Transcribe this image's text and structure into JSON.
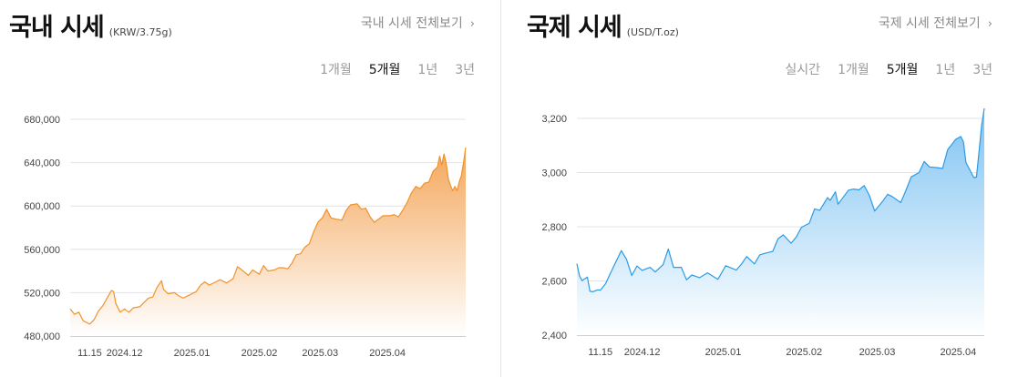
{
  "domestic": {
    "title": "국내 시세",
    "unit": "(KRW/3.75g)",
    "more_link": "국내 시세 전체보기",
    "periods": [
      "1개월",
      "5개월",
      "1년",
      "3년"
    ],
    "active_period": "5개월",
    "colors": {
      "line": "#f0932b",
      "fill_top": "#f4a65a",
      "fill_bottom": "#ffffff"
    }
  },
  "international": {
    "title": "국제 시세",
    "unit": "(USD/T.oz)",
    "more_link": "국제 시세 전체보기",
    "periods": [
      "실시간",
      "1개월",
      "5개월",
      "1년",
      "3년"
    ],
    "active_period": "5개월",
    "colors": {
      "line": "#2b9be6",
      "fill_top": "#7fc3f2",
      "fill_bottom": "#ffffff"
    }
  },
  "chart_data": [
    {
      "type": "area",
      "series_name": "",
      "ylim": [
        480000,
        680000
      ],
      "yticks": [
        480000,
        520000,
        560000,
        600000,
        640000,
        680000
      ],
      "ytick_labels": [
        "480,000",
        "520,000",
        "560,000",
        "600,000",
        "640,000",
        "680,000"
      ],
      "xticks": [
        "2024-11-15",
        "2024-12-01",
        "2025-01-01",
        "2025-02-01",
        "2025-03-01",
        "2025-04-01"
      ],
      "xtick_labels": [
        "11.15",
        "2024.12",
        "2025.01",
        "2025.02",
        "2025.03",
        "2025.04"
      ],
      "grid": true,
      "points": [
        [
          "2024-11-06",
          505000
        ],
        [
          "2024-11-08",
          500000
        ],
        [
          "2024-11-10",
          502000
        ],
        [
          "2024-11-12",
          494000
        ],
        [
          "2024-11-14",
          492000
        ],
        [
          "2024-11-15",
          491000
        ],
        [
          "2024-11-17",
          495000
        ],
        [
          "2024-11-19",
          503000
        ],
        [
          "2024-11-21",
          508000
        ],
        [
          "2024-11-23",
          515000
        ],
        [
          "2024-11-25",
          522000
        ],
        [
          "2024-11-26",
          521000
        ],
        [
          "2024-11-27",
          510000
        ],
        [
          "2024-11-29",
          502000
        ],
        [
          "2024-12-01",
          505000
        ],
        [
          "2024-12-03",
          502000
        ],
        [
          "2024-12-05",
          506000
        ],
        [
          "2024-12-08",
          507000
        ],
        [
          "2024-12-10",
          511000
        ],
        [
          "2024-12-12",
          515000
        ],
        [
          "2024-12-14",
          516000
        ],
        [
          "2024-12-16",
          525000
        ],
        [
          "2024-12-18",
          531000
        ],
        [
          "2024-12-19",
          523000
        ],
        [
          "2024-12-21",
          519000
        ],
        [
          "2024-12-24",
          520000
        ],
        [
          "2024-12-26",
          517000
        ],
        [
          "2024-12-28",
          515000
        ],
        [
          "2024-12-31",
          518000
        ],
        [
          "2025-01-03",
          521000
        ],
        [
          "2025-01-05",
          527000
        ],
        [
          "2025-01-07",
          530000
        ],
        [
          "2025-01-09",
          527000
        ],
        [
          "2025-01-12",
          530000
        ],
        [
          "2025-01-14",
          532000
        ],
        [
          "2025-01-17",
          529000
        ],
        [
          "2025-01-20",
          533000
        ],
        [
          "2025-01-22",
          544000
        ],
        [
          "2025-01-24",
          541000
        ],
        [
          "2025-01-27",
          536000
        ],
        [
          "2025-01-29",
          541000
        ],
        [
          "2025-02-01",
          537000
        ],
        [
          "2025-02-03",
          545000
        ],
        [
          "2025-02-05",
          540000
        ],
        [
          "2025-02-08",
          541000
        ],
        [
          "2025-02-10",
          543000
        ],
        [
          "2025-02-12",
          543000
        ],
        [
          "2025-02-14",
          542000
        ],
        [
          "2025-02-16",
          547000
        ],
        [
          "2025-02-18",
          555000
        ],
        [
          "2025-02-20",
          556000
        ],
        [
          "2025-02-22",
          562000
        ],
        [
          "2025-02-24",
          565000
        ],
        [
          "2025-02-26",
          576000
        ],
        [
          "2025-02-28",
          585000
        ],
        [
          "2025-03-02",
          589000
        ],
        [
          "2025-03-04",
          597000
        ],
        [
          "2025-03-06",
          589000
        ],
        [
          "2025-03-08",
          588000
        ],
        [
          "2025-03-11",
          587000
        ],
        [
          "2025-03-13",
          596000
        ],
        [
          "2025-03-15",
          601000
        ],
        [
          "2025-03-18",
          602000
        ],
        [
          "2025-03-20",
          597000
        ],
        [
          "2025-03-22",
          598000
        ],
        [
          "2025-03-24",
          590000
        ],
        [
          "2025-03-26",
          585000
        ],
        [
          "2025-03-28",
          588000
        ],
        [
          "2025-03-30",
          591000
        ],
        [
          "2025-04-02",
          591000
        ],
        [
          "2025-04-04",
          592000
        ],
        [
          "2025-04-06",
          590000
        ],
        [
          "2025-04-08",
          596000
        ],
        [
          "2025-04-10",
          603000
        ],
        [
          "2025-04-12",
          612000
        ],
        [
          "2025-04-14",
          618000
        ],
        [
          "2025-04-16",
          616000
        ],
        [
          "2025-04-18",
          621000
        ],
        [
          "2025-04-20",
          622000
        ],
        [
          "2025-04-22",
          632000
        ],
        [
          "2025-04-24",
          636000
        ],
        [
          "2025-04-25",
          646000
        ],
        [
          "2025-04-26",
          638000
        ],
        [
          "2025-04-27",
          648000
        ],
        [
          "2025-04-28",
          640000
        ],
        [
          "2025-04-29",
          625000
        ],
        [
          "2025-04-30",
          619000
        ],
        [
          "2025-05-01",
          614000
        ],
        [
          "2025-05-02",
          618000
        ],
        [
          "2025-05-03",
          614000
        ],
        [
          "2025-05-04",
          622000
        ],
        [
          "2025-05-05",
          628000
        ],
        [
          "2025-05-06",
          640000
        ],
        [
          "2025-05-07",
          654000
        ]
      ]
    },
    {
      "type": "area",
      "series_name": "",
      "ylim": [
        2400,
        3200
      ],
      "yticks": [
        2400,
        2600,
        2800,
        3000,
        3200
      ],
      "ytick_labels": [
        "2,400",
        "2,600",
        "2,800",
        "3,000",
        "3,200"
      ],
      "xticks": [
        "2024-11-15",
        "2024-12-01",
        "2025-01-01",
        "2025-02-01",
        "2025-03-01",
        "2025-04-01"
      ],
      "xtick_labels": [
        "11.15",
        "2024.12",
        "2025.01",
        "2025.02",
        "2025.03",
        "2025.04"
      ],
      "grid": true,
      "points": [
        [
          "2024-11-06",
          2664
        ],
        [
          "2024-11-07",
          2618
        ],
        [
          "2024-11-08",
          2601
        ],
        [
          "2024-11-10",
          2614
        ],
        [
          "2024-11-11",
          2562
        ],
        [
          "2024-11-12",
          2560
        ],
        [
          "2024-11-14",
          2567
        ],
        [
          "2024-11-15",
          2566
        ],
        [
          "2024-11-17",
          2590
        ],
        [
          "2024-11-19",
          2632
        ],
        [
          "2024-11-21",
          2672
        ],
        [
          "2024-11-23",
          2712
        ],
        [
          "2024-11-25",
          2680
        ],
        [
          "2024-11-27",
          2620
        ],
        [
          "2024-11-29",
          2655
        ],
        [
          "2024-12-01",
          2639
        ],
        [
          "2024-12-04",
          2650
        ],
        [
          "2024-12-06",
          2633
        ],
        [
          "2024-12-09",
          2660
        ],
        [
          "2024-12-11",
          2718
        ],
        [
          "2024-12-13",
          2650
        ],
        [
          "2024-12-16",
          2650
        ],
        [
          "2024-12-18",
          2604
        ],
        [
          "2024-12-20",
          2622
        ],
        [
          "2024-12-23",
          2612
        ],
        [
          "2024-12-26",
          2630
        ],
        [
          "2024-12-30",
          2606
        ],
        [
          "2025-01-02",
          2656
        ],
        [
          "2025-01-06",
          2640
        ],
        [
          "2025-01-08",
          2662
        ],
        [
          "2025-01-10",
          2690
        ],
        [
          "2025-01-13",
          2663
        ],
        [
          "2025-01-15",
          2696
        ],
        [
          "2025-01-17",
          2702
        ],
        [
          "2025-01-20",
          2709
        ],
        [
          "2025-01-22",
          2755
        ],
        [
          "2025-01-24",
          2770
        ],
        [
          "2025-01-27",
          2739
        ],
        [
          "2025-01-29",
          2762
        ],
        [
          "2025-01-31",
          2798
        ],
        [
          "2025-02-03",
          2813
        ],
        [
          "2025-02-05",
          2866
        ],
        [
          "2025-02-07",
          2861
        ],
        [
          "2025-02-10",
          2908
        ],
        [
          "2025-02-11",
          2897
        ],
        [
          "2025-02-13",
          2929
        ],
        [
          "2025-02-14",
          2883
        ],
        [
          "2025-02-18",
          2935
        ],
        [
          "2025-02-20",
          2939
        ],
        [
          "2025-02-22",
          2936
        ],
        [
          "2025-02-24",
          2952
        ],
        [
          "2025-02-26",
          2916
        ],
        [
          "2025-02-28",
          2858
        ],
        [
          "2025-03-03",
          2893
        ],
        [
          "2025-03-05",
          2920
        ],
        [
          "2025-03-07",
          2910
        ],
        [
          "2025-03-10",
          2889
        ],
        [
          "2025-03-12",
          2934
        ],
        [
          "2025-03-14",
          2984
        ],
        [
          "2025-03-17",
          3000
        ],
        [
          "2025-03-19",
          3041
        ],
        [
          "2025-03-21",
          3021
        ],
        [
          "2025-03-24",
          3018
        ],
        [
          "2025-03-26",
          3015
        ],
        [
          "2025-03-28",
          3085
        ],
        [
          "2025-03-31",
          3122
        ],
        [
          "2025-04-02",
          3133
        ],
        [
          "2025-04-03",
          3114
        ],
        [
          "2025-04-04",
          3037
        ],
        [
          "2025-04-07",
          2982
        ],
        [
          "2025-04-08",
          2983
        ],
        [
          "2025-04-09",
          3079
        ],
        [
          "2025-04-10",
          3174
        ],
        [
          "2025-04-11",
          3237
        ]
      ]
    }
  ]
}
